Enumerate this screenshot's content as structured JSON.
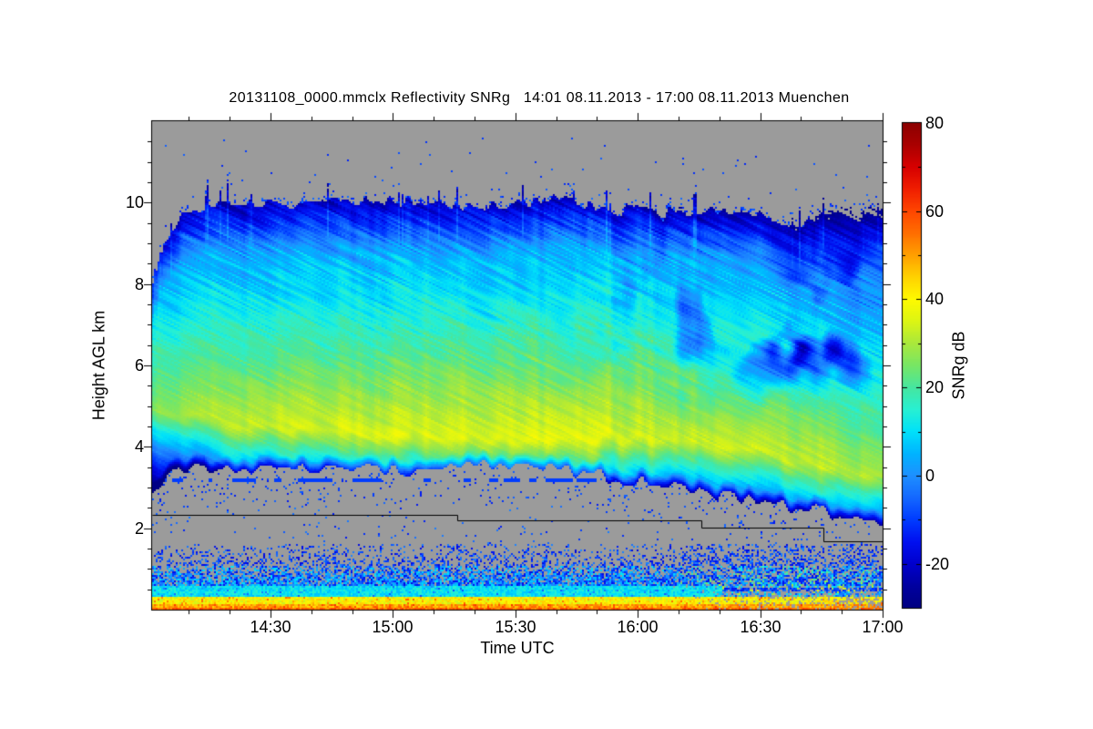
{
  "chart_data": {
    "type": "heatmap",
    "title": "20131108_0000.mmclx Reflectivity SNRg   14:01 08.11.2013 - 17:00 08.11.2013 Muenchen",
    "source_file": "20131108_0000.mmclx",
    "quantity": "Reflectivity SNRg",
    "time_start": "14:01 08.11.2013",
    "time_end": "17:00 08.11.2013",
    "station": "Muenchen",
    "x": {
      "label": "Time UTC",
      "start": "14:01",
      "end": "17:00",
      "span_minutes": 179,
      "major_ticks": [
        {
          "minutes": 29,
          "label": "14:30"
        },
        {
          "minutes": 59,
          "label": "15:00"
        },
        {
          "minutes": 89,
          "label": "15:30"
        },
        {
          "minutes": 119,
          "label": "16:00"
        },
        {
          "minutes": 149,
          "label": "16:30"
        },
        {
          "minutes": 179,
          "label": "17:00"
        }
      ],
      "minor_tick_step_minutes": 10
    },
    "y": {
      "label": "Height AGL km",
      "min": 0,
      "max": 12,
      "major_ticks": [
        2,
        4,
        6,
        8,
        10
      ],
      "minor_tick_step_km": 0.5
    },
    "z": {
      "label": "SNRg dB",
      "min": -30,
      "max": 80,
      "major_ticks": [
        -20,
        0,
        20,
        40,
        60,
        80
      ],
      "minor_tick_step_db": 10
    },
    "no_data_color": "#9b9b9b",
    "colormap": [
      [
        -30,
        "#000082"
      ],
      [
        -25,
        "#0000a0"
      ],
      [
        -20,
        "#0000cd"
      ],
      [
        -15,
        "#0010f0"
      ],
      [
        -10,
        "#003cff"
      ],
      [
        -5,
        "#1468ff"
      ],
      [
        0,
        "#1e90ff"
      ],
      [
        5,
        "#00b4ff"
      ],
      [
        10,
        "#00e1fa"
      ],
      [
        15,
        "#28f0d2"
      ],
      [
        20,
        "#46e6a0"
      ],
      [
        25,
        "#78e664"
      ],
      [
        30,
        "#aae83c"
      ],
      [
        35,
        "#dcf514"
      ],
      [
        40,
        "#fffa00"
      ],
      [
        45,
        "#ffd200"
      ],
      [
        50,
        "#ffa000"
      ],
      [
        55,
        "#ff6e00"
      ],
      [
        60,
        "#ff4600"
      ],
      [
        65,
        "#f01e00"
      ],
      [
        70,
        "#d70000"
      ],
      [
        75,
        "#aa0000"
      ],
      [
        80,
        "#8c0000"
      ]
    ],
    "step_line": {
      "color": "#000000",
      "points_t_h": [
        [
          0,
          2.33
        ],
        [
          0.4177,
          2.33
        ],
        [
          0.4177,
          2.19
        ],
        [
          0.7519,
          2.19
        ],
        [
          0.7519,
          2.01
        ],
        [
          0.919,
          2.01
        ],
        [
          0.919,
          1.68
        ],
        [
          1,
          1.68
        ]
      ]
    },
    "field_model": {
      "description": "Cloud-radar time-height SNRg field: stratiform cloud deck ~3.5-10 km AGL, yellow maximum (~35 dB) near 4-4.5 km sloping down to ~3.3 km by 17:00, blue fringes at cloud top/base, dark-blue patches with gray data gaps aloft after ~15:50, dashed blue artifact line near 3.15 km before ~15:55, speckled boundary-layer returns below 1.6 km and strong orange/red returns in the lowest gates.",
      "cloud_top_km": [
        [
          0,
          8.2
        ],
        [
          0.015,
          9.0
        ],
        [
          0.04,
          9.8
        ],
        [
          0.1,
          9.95
        ],
        [
          0.3,
          10.05
        ],
        [
          0.47,
          9.9
        ],
        [
          0.55,
          10.15
        ],
        [
          0.6,
          9.9
        ],
        [
          0.7,
          9.7
        ],
        [
          0.78,
          9.85
        ],
        [
          0.88,
          9.5
        ],
        [
          0.95,
          9.85
        ],
        [
          1,
          9.9
        ]
      ],
      "cloud_base_km": [
        [
          0,
          3.0
        ],
        [
          0.03,
          3.4
        ],
        [
          0.1,
          3.55
        ],
        [
          0.17,
          3.35
        ],
        [
          0.26,
          3.55
        ],
        [
          0.34,
          3.4
        ],
        [
          0.44,
          3.55
        ],
        [
          0.52,
          3.45
        ],
        [
          0.6,
          3.35
        ],
        [
          0.66,
          3.15
        ],
        [
          0.74,
          2.95
        ],
        [
          0.82,
          2.65
        ],
        [
          0.9,
          2.45
        ],
        [
          1,
          2.1
        ]
      ],
      "peak_height_km": [
        [
          0,
          4.9
        ],
        [
          0.12,
          4.55
        ],
        [
          0.3,
          4.35
        ],
        [
          0.5,
          4.15
        ],
        [
          0.68,
          4.25
        ],
        [
          0.8,
          4.0
        ],
        [
          0.9,
          3.6
        ],
        [
          1,
          3.3
        ]
      ],
      "peak_snr_db": [
        [
          0,
          26
        ],
        [
          0.08,
          31
        ],
        [
          0.22,
          34
        ],
        [
          0.4,
          36
        ],
        [
          0.58,
          36
        ],
        [
          0.72,
          34
        ],
        [
          0.86,
          33
        ],
        [
          1,
          30
        ]
      ],
      "lapse_above_db_per_km": 7.0,
      "lapse_below_db_per_km": 30,
      "dashed_artifact_km": 3.15,
      "dashed_artifact_t_max": 0.64,
      "surface_bands": [
        {
          "h_km": [
            0,
            0.05
          ],
          "snr_db": [
            50,
            62
          ],
          "note": "red-orange ground band"
        },
        {
          "h_km": [
            0.05,
            0.13
          ],
          "snr_db": [
            43,
            57
          ],
          "note": "orange band"
        },
        {
          "h_km": [
            0.13,
            0.32
          ],
          "snr_db": [
            32,
            46
          ],
          "note": "yellow band"
        },
        {
          "h_km": [
            0.32,
            0.6
          ],
          "snr_db": [
            5,
            16
          ],
          "note": "cyan band, breaks to speckle after ~16:15"
        },
        {
          "h_km": [
            0.6,
            1.08
          ],
          "snr_db": [
            -17,
            11
          ],
          "note": "dense blue speckle"
        },
        {
          "h_km": [
            1.08,
            1.62
          ],
          "snr_db": [
            -18,
            -1
          ],
          "note": "sparse blue speckle"
        }
      ]
    }
  }
}
